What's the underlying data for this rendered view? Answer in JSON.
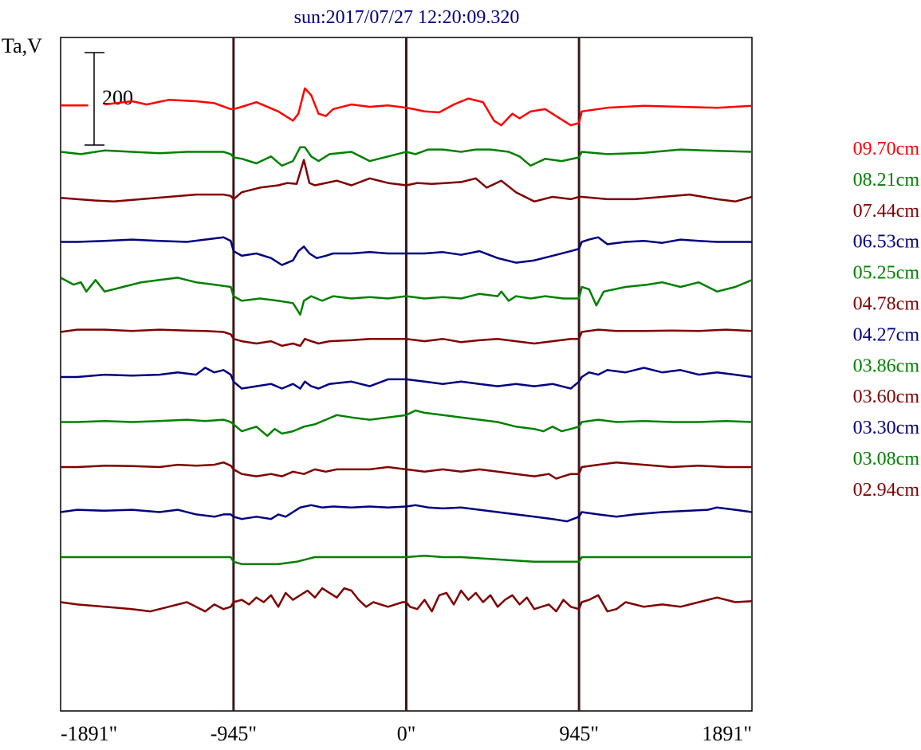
{
  "chart_data": {
    "type": "line",
    "title": "sun:2017/07/27 12:20:09.320",
    "ylabel": "Ta,V",
    "xlabel": "",
    "x_ticks": [
      "-1891\"",
      "-945\"",
      "0\"",
      "945\"",
      "1891\""
    ],
    "x_tick_values": [
      -1891,
      -945,
      0,
      945,
      1891
    ],
    "xlim": [
      -1891,
      1891
    ],
    "vertical_markers": [
      -945,
      0,
      945
    ],
    "scale_bar": {
      "value": 200,
      "label": "200"
    },
    "colors": {
      "red": "#ff0000",
      "green": "#008000",
      "darkred": "#800000",
      "navy": "#000080",
      "frame": "#000000",
      "marker": "#3a1a1a"
    },
    "series": [
      {
        "name": "09.70cm",
        "color": "#ff0000",
        "baseline": 0,
        "x": [
          -1891,
          -1740,
          -1720,
          -1650,
          -1500,
          -1420,
          -1300,
          -1150,
          -1050,
          -960,
          -945,
          -900,
          -820,
          -700,
          -620,
          -590,
          -555,
          -520,
          -480,
          -440,
          -400,
          -300,
          -200,
          -100,
          0,
          40,
          100,
          180,
          260,
          340,
          420,
          480,
          520,
          580,
          620,
          680,
          760,
          860,
          900,
          945,
          960,
          1100,
          1300,
          1500,
          1700,
          1891
        ],
        "values": [
          3,
          3,
          null,
          5,
          12,
          5,
          15,
          12,
          8,
          -5,
          -5,
          0,
          10,
          -10,
          -30,
          -15,
          40,
          25,
          -15,
          -20,
          -5,
          5,
          0,
          3,
          -2,
          -5,
          -10,
          -12,
          5,
          18,
          10,
          -30,
          -40,
          -15,
          -25,
          -10,
          -5,
          -30,
          -40,
          -35,
          -10,
          -2,
          2,
          0,
          -2,
          2
        ]
      },
      {
        "name": "08.21cm",
        "color": "#008000",
        "baseline": -1,
        "x": [
          -1891,
          -1780,
          -1650,
          -1500,
          -1350,
          -1200,
          -1100,
          -1000,
          -960,
          -945,
          -900,
          -820,
          -740,
          -680,
          -620,
          -580,
          -555,
          -520,
          -480,
          -420,
          -300,
          -200,
          -100,
          0,
          50,
          120,
          200,
          300,
          380,
          460,
          560,
          620,
          680,
          760,
          850,
          945,
          960,
          1100,
          1300,
          1500,
          1700,
          1891
        ],
        "values": [
          0,
          -5,
          3,
          0,
          -3,
          0,
          0,
          0,
          -5,
          -12,
          -15,
          -25,
          -10,
          -30,
          -20,
          10,
          10,
          -10,
          -20,
          -5,
          0,
          -20,
          -10,
          0,
          -5,
          5,
          5,
          0,
          5,
          5,
          0,
          -10,
          -30,
          -15,
          -20,
          -12,
          0,
          -5,
          -2,
          5,
          2,
          0
        ]
      },
      {
        "name": "07.44cm",
        "color": "#800000",
        "baseline": -2,
        "x": [
          -1891,
          -1800,
          -1700,
          -1600,
          -1450,
          -1300,
          -1150,
          -1000,
          -960,
          -945,
          -900,
          -800,
          -700,
          -650,
          -600,
          -560,
          -530,
          -500,
          -440,
          -380,
          -300,
          -200,
          -100,
          0,
          60,
          140,
          220,
          300,
          380,
          440,
          520,
          600,
          700,
          800,
          900,
          945,
          960,
          1100,
          1250,
          1400,
          1550,
          1700,
          1800,
          1891
        ],
        "values": [
          -2,
          -5,
          -8,
          -10,
          -5,
          0,
          5,
          5,
          2,
          -5,
          10,
          20,
          25,
          30,
          28,
          80,
          30,
          25,
          30,
          35,
          25,
          40,
          30,
          25,
          30,
          28,
          30,
          32,
          40,
          20,
          35,
          10,
          -10,
          0,
          -5,
          0,
          0,
          -5,
          -5,
          0,
          5,
          -5,
          -10,
          0
        ]
      },
      {
        "name": "06.53cm",
        "color": "#000080",
        "baseline": -3,
        "x": [
          -1891,
          -1800,
          -1650,
          -1500,
          -1350,
          -1200,
          -1100,
          -1000,
          -960,
          -945,
          -900,
          -820,
          -740,
          -680,
          -620,
          -590,
          -560,
          -530,
          -490,
          -440,
          -400,
          -300,
          -200,
          -100,
          0,
          100,
          200,
          300,
          400,
          500,
          600,
          700,
          800,
          900,
          945,
          960,
          1000,
          1050,
          1100,
          1200,
          1300,
          1400,
          1500,
          1600,
          1700,
          1891
        ],
        "values": [
          0,
          0,
          2,
          5,
          2,
          0,
          5,
          10,
          2,
          -20,
          -30,
          -25,
          -35,
          -50,
          -40,
          -20,
          -10,
          -25,
          -35,
          -30,
          -25,
          -25,
          -22,
          -25,
          -25,
          -25,
          -22,
          -28,
          -20,
          -35,
          -45,
          -40,
          -30,
          -20,
          -15,
          0,
          5,
          10,
          -5,
          0,
          2,
          -2,
          5,
          2,
          0,
          0
        ]
      },
      {
        "name": "05.25cm",
        "color": "#008000",
        "baseline": -4,
        "x": [
          -1891,
          -1820,
          -1780,
          -1750,
          -1700,
          -1650,
          -1550,
          -1450,
          -1350,
          -1250,
          -1150,
          -1050,
          -960,
          -945,
          -900,
          -800,
          -700,
          -620,
          -580,
          -560,
          -520,
          -460,
          -400,
          -300,
          -200,
          -100,
          0,
          100,
          200,
          300,
          400,
          500,
          520,
          560,
          600,
          680,
          760,
          860,
          945,
          960,
          1000,
          1040,
          1080,
          1200,
          1320,
          1400,
          1500,
          1600,
          1700,
          1800,
          1891
        ],
        "values": [
          20,
          5,
          10,
          -10,
          15,
          -10,
          0,
          10,
          15,
          20,
          10,
          5,
          0,
          -20,
          -30,
          -25,
          -30,
          -35,
          -60,
          -30,
          -20,
          -30,
          -20,
          -25,
          -22,
          -25,
          -20,
          -25,
          -22,
          -25,
          -15,
          -20,
          -10,
          -30,
          -20,
          -25,
          -20,
          -25,
          -25,
          0,
          -5,
          -40,
          -10,
          0,
          5,
          10,
          0,
          10,
          -10,
          0,
          15
        ]
      },
      {
        "name": "04.78cm",
        "color": "#800000",
        "baseline": -5,
        "x": [
          -1891,
          -1800,
          -1650,
          -1500,
          -1350,
          -1200,
          -1100,
          -1000,
          -960,
          -945,
          -900,
          -820,
          -740,
          -680,
          -620,
          -580,
          -555,
          -520,
          -480,
          -420,
          -300,
          -200,
          -100,
          0,
          100,
          200,
          300,
          400,
          500,
          600,
          700,
          800,
          900,
          945,
          960,
          1050,
          1150,
          1300,
          1450,
          1600,
          1750,
          1891
        ],
        "values": [
          0,
          5,
          5,
          2,
          5,
          3,
          2,
          0,
          -5,
          -15,
          -20,
          -25,
          -20,
          -30,
          -25,
          -30,
          -15,
          -20,
          -25,
          -20,
          -18,
          -15,
          -15,
          -15,
          -20,
          -15,
          -22,
          -18,
          -15,
          -20,
          -25,
          -20,
          -15,
          -15,
          0,
          5,
          2,
          2,
          3,
          2,
          5,
          2
        ]
      },
      {
        "name": "04.27cm",
        "color": "#000080",
        "baseline": -6,
        "x": [
          -1891,
          -1800,
          -1650,
          -1500,
          -1350,
          -1250,
          -1150,
          -1100,
          -1050,
          -1000,
          -960,
          -945,
          -900,
          -820,
          -740,
          -680,
          -620,
          -580,
          -555,
          -520,
          -480,
          -420,
          -300,
          -200,
          -100,
          0,
          100,
          200,
          300,
          400,
          500,
          600,
          700,
          800,
          900,
          945,
          960,
          1000,
          1050,
          1100,
          1200,
          1300,
          1400,
          1500,
          1600,
          1700,
          1800,
          1891
        ],
        "values": [
          0,
          0,
          5,
          3,
          5,
          10,
          5,
          20,
          10,
          15,
          5,
          -10,
          -25,
          -20,
          -15,
          -25,
          -15,
          -25,
          -10,
          -20,
          -25,
          -15,
          -10,
          -20,
          -5,
          -5,
          -10,
          -15,
          -10,
          -15,
          -20,
          -15,
          -20,
          -15,
          -25,
          -10,
          0,
          10,
          5,
          15,
          10,
          20,
          10,
          15,
          5,
          10,
          5,
          0
        ]
      },
      {
        "name": "03.86cm",
        "color": "#008000",
        "baseline": -7,
        "x": [
          -1891,
          -1800,
          -1650,
          -1500,
          -1350,
          -1200,
          -1100,
          -1000,
          -960,
          -945,
          -900,
          -820,
          -760,
          -720,
          -680,
          -620,
          -560,
          -500,
          -440,
          -380,
          -300,
          -200,
          -100,
          0,
          50,
          100,
          200,
          300,
          400,
          500,
          600,
          700,
          750,
          800,
          850,
          900,
          945,
          960,
          1050,
          1150,
          1300,
          1450,
          1600,
          1750,
          1891
        ],
        "values": [
          0,
          0,
          2,
          0,
          2,
          5,
          2,
          5,
          0,
          -5,
          -20,
          -10,
          -30,
          -15,
          -25,
          -20,
          -10,
          -5,
          5,
          15,
          10,
          5,
          10,
          15,
          25,
          20,
          15,
          10,
          5,
          0,
          -10,
          -15,
          -20,
          -10,
          -20,
          -15,
          -10,
          0,
          5,
          0,
          2,
          0,
          0,
          2,
          0
        ]
      },
      {
        "name": "03.60cm",
        "color": "#800000",
        "baseline": -8,
        "x": [
          -1891,
          -1800,
          -1650,
          -1500,
          -1350,
          -1250,
          -1150,
          -1050,
          -1000,
          -960,
          -945,
          -900,
          -820,
          -740,
          -680,
          -620,
          -560,
          -500,
          -440,
          -380,
          -300,
          -200,
          -100,
          0,
          100,
          200,
          300,
          400,
          500,
          600,
          700,
          780,
          820,
          860,
          900,
          945,
          960,
          1050,
          1150,
          1300,
          1450,
          1600,
          1750,
          1891
        ],
        "values": [
          0,
          0,
          3,
          2,
          0,
          5,
          3,
          5,
          10,
          3,
          -5,
          -15,
          -20,
          -15,
          -20,
          -10,
          -15,
          -5,
          -10,
          -5,
          -5,
          -5,
          0,
          -5,
          -10,
          -5,
          -10,
          -5,
          -10,
          -15,
          -20,
          -15,
          -25,
          -20,
          -15,
          -15,
          0,
          5,
          10,
          5,
          0,
          3,
          0,
          0
        ]
      },
      {
        "name": "03.30cm",
        "color": "#000080",
        "baseline": -9,
        "x": [
          -1891,
          -1800,
          -1650,
          -1500,
          -1350,
          -1250,
          -1150,
          -1050,
          -1000,
          -960,
          -945,
          -900,
          -820,
          -740,
          -700,
          -660,
          -620,
          -580,
          -520,
          -460,
          -400,
          -300,
          -200,
          -100,
          0,
          50,
          120,
          200,
          300,
          400,
          500,
          600,
          700,
          800,
          880,
          945,
          960,
          1050,
          1150,
          1250,
          1400,
          1550,
          1650,
          1700,
          1800,
          1891
        ],
        "values": [
          0,
          5,
          3,
          5,
          0,
          5,
          -5,
          -10,
          -5,
          -5,
          -10,
          -15,
          -10,
          -15,
          -5,
          -10,
          0,
          10,
          15,
          10,
          12,
          10,
          12,
          10,
          12,
          15,
          10,
          8,
          10,
          5,
          0,
          -5,
          -10,
          -15,
          -20,
          -10,
          0,
          -5,
          -10,
          -5,
          0,
          3,
          5,
          10,
          5,
          0
        ]
      },
      {
        "name": "03.08cm",
        "color": "#008000",
        "baseline": -10,
        "x": [
          -1891,
          -1600,
          -1300,
          -1000,
          -960,
          -945,
          -900,
          -700,
          -600,
          -500,
          -300,
          -100,
          0,
          100,
          200,
          300,
          500,
          700,
          800,
          900,
          945,
          960,
          1100,
          1300,
          1500,
          1700,
          1891
        ],
        "values": [
          0,
          0,
          0,
          0,
          0,
          -10,
          -15,
          -15,
          -10,
          0,
          0,
          0,
          0,
          3,
          0,
          0,
          -5,
          -10,
          -10,
          -10,
          -10,
          0,
          0,
          0,
          0,
          0,
          0
        ]
      },
      {
        "name": "02.94cm",
        "color": "#800000",
        "baseline": -11,
        "x": [
          -1891,
          -1800,
          -1650,
          -1500,
          -1400,
          -1300,
          -1200,
          -1100,
          -1050,
          -1000,
          -960,
          -945,
          -900,
          -860,
          -820,
          -780,
          -740,
          -700,
          -660,
          -620,
          -580,
          -540,
          -500,
          -460,
          -420,
          -380,
          -340,
          -300,
          -260,
          -220,
          -180,
          -140,
          -100,
          -60,
          -20,
          0,
          20,
          60,
          100,
          140,
          180,
          220,
          260,
          300,
          340,
          380,
          420,
          460,
          500,
          540,
          580,
          620,
          660,
          700,
          740,
          780,
          820,
          860,
          900,
          945,
          960,
          1000,
          1050,
          1100,
          1150,
          1200,
          1300,
          1400,
          1500,
          1600,
          1700,
          1800,
          1891
        ],
        "values": [
          0,
          -5,
          -10,
          -15,
          -20,
          -10,
          0,
          -20,
          -5,
          -15,
          -10,
          0,
          5,
          -5,
          10,
          0,
          15,
          -10,
          20,
          5,
          15,
          25,
          10,
          30,
          20,
          10,
          30,
          25,
          5,
          -10,
          0,
          -5,
          -10,
          -5,
          0,
          0,
          -10,
          -15,
          5,
          -20,
          15,
          20,
          -5,
          25,
          5,
          20,
          0,
          15,
          -10,
          5,
          15,
          -5,
          10,
          -15,
          -10,
          -5,
          -20,
          5,
          -10,
          -15,
          0,
          5,
          15,
          -20,
          -15,
          0,
          -10,
          -5,
          -10,
          0,
          10,
          0,
          2
        ]
      }
    ]
  }
}
